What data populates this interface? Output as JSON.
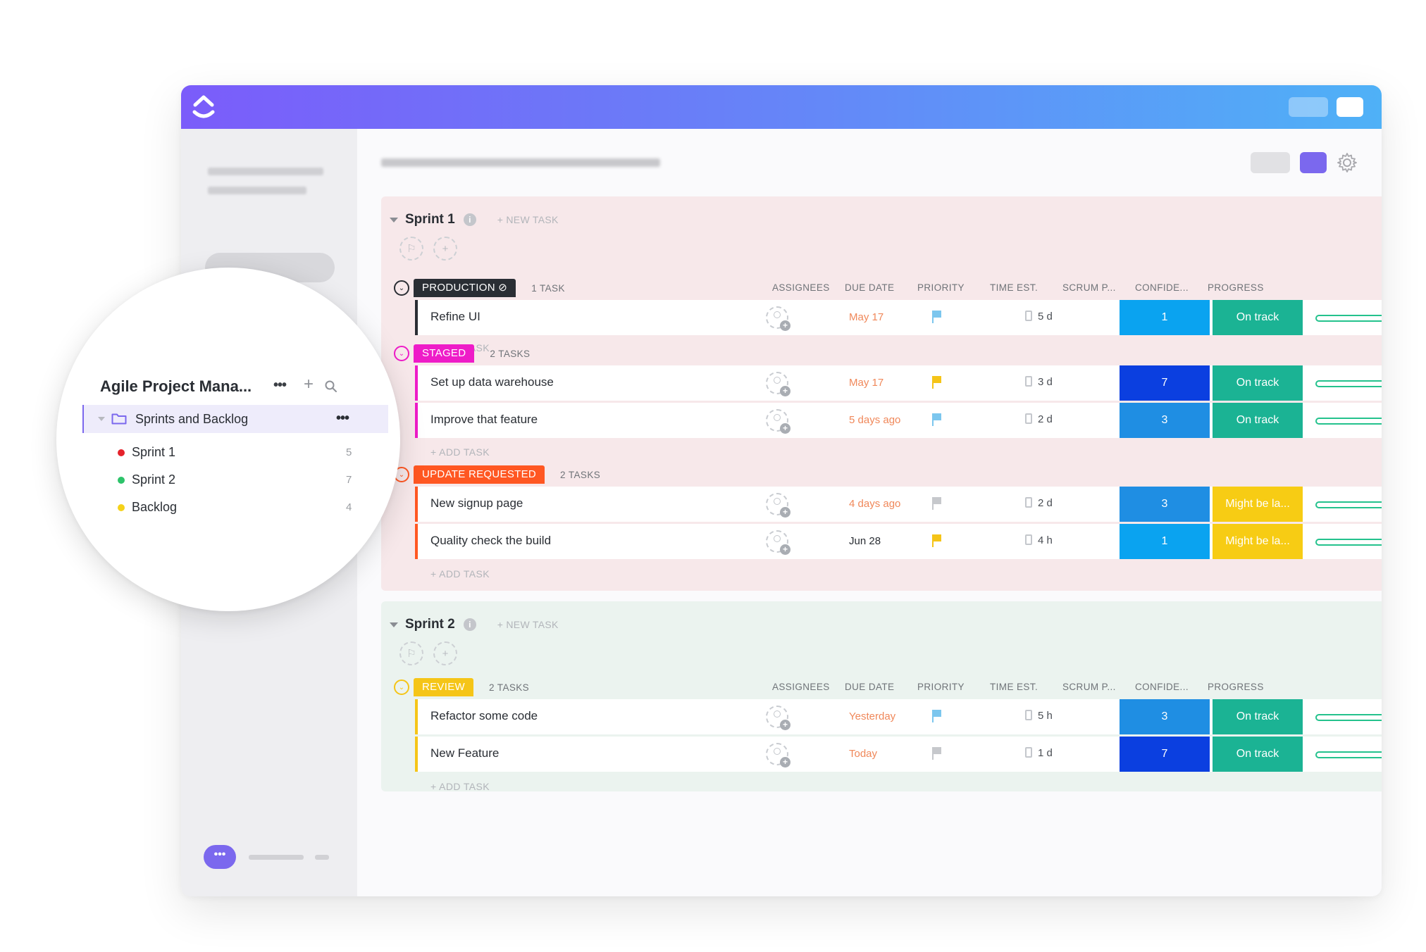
{
  "columns": {
    "assignees": "ASSIGNEES",
    "due_date": "DUE DATE",
    "priority": "PRIORITY",
    "time_est": "TIME EST.",
    "scrum": "SCRUM P...",
    "confidence": "CONFIDE...",
    "progress": "PROGRESS"
  },
  "labels": {
    "new_task": "+ NEW TASK",
    "add_task": "+ ADD TASK"
  },
  "sprints": [
    {
      "name": "Sprint 1",
      "groups": [
        {
          "status": "PRODUCTION",
          "color": "#2a2e34",
          "count": "1 TASK",
          "tasks": [
            {
              "name": "Refine UI",
              "due": "May 17",
              "due_color": "#f0885a",
              "priority_color": "#7cc6ee",
              "time": "5 d",
              "scrum": "1",
              "scrum_color": "#0aa3f0",
              "confidence": "On track",
              "conf_color": "#1bb394"
            }
          ]
        },
        {
          "status": "STAGED",
          "color": "#ee1cc8",
          "count": "2 TASKS",
          "tasks": [
            {
              "name": "Set up data warehouse",
              "due": "May 17",
              "due_color": "#f0885a",
              "priority_color": "#f5c418",
              "time": "3 d",
              "scrum": "7",
              "scrum_color": "#0b3fe0",
              "confidence": "On track",
              "conf_color": "#1bb394"
            },
            {
              "name": "Improve that feature",
              "due": "5 days ago",
              "due_color": "#f0885a",
              "priority_color": "#7cc6ee",
              "time": "2 d",
              "scrum": "3",
              "scrum_color": "#1f8ee3",
              "confidence": "On track",
              "conf_color": "#1bb394"
            }
          ]
        },
        {
          "status": "UPDATE REQUESTED",
          "color": "#ff5722",
          "count": "2 TASKS",
          "tasks": [
            {
              "name": "New signup page",
              "due": "4 days ago",
              "due_color": "#f0885a",
              "priority_color": "#c6c8cc",
              "time": "2 d",
              "scrum": "3",
              "scrum_color": "#1f8ee3",
              "confidence": "Might be la...",
              "conf_color": "#f7cc14"
            },
            {
              "name": "Quality check the build",
              "due": "Jun 28",
              "due_color": "#2a2e34",
              "priority_color": "#f5c418",
              "time": "4 h",
              "scrum": "1",
              "scrum_color": "#0aa3f0",
              "confidence": "Might be la...",
              "conf_color": "#f7cc14"
            }
          ]
        }
      ]
    },
    {
      "name": "Sprint 2",
      "groups": [
        {
          "status": "REVIEW",
          "color": "#f5c518",
          "count": "2 TASKS",
          "tasks": [
            {
              "name": "Refactor some code",
              "due": "Yesterday",
              "due_color": "#f0885a",
              "priority_color": "#7cc6ee",
              "time": "5 h",
              "scrum": "3",
              "scrum_color": "#1f8ee3",
              "confidence": "On track",
              "conf_color": "#1bb394"
            },
            {
              "name": "New Feature",
              "due": "Today",
              "due_color": "#f0885a",
              "priority_color": "#c6c8cc",
              "time": "1 d",
              "scrum": "7",
              "scrum_color": "#0b3fe0",
              "confidence": "On track",
              "conf_color": "#1bb394"
            }
          ]
        }
      ]
    }
  ],
  "sidebar_zoom": {
    "title": "Agile Project Mana...",
    "folder": "Sprints and Backlog",
    "lists": [
      {
        "name": "Sprint 1",
        "count": "5",
        "color": "#e5222b"
      },
      {
        "name": "Sprint 2",
        "count": "7",
        "color": "#2dc36a"
      },
      {
        "name": "Backlog",
        "count": "4",
        "color": "#f5d21a"
      }
    ]
  }
}
